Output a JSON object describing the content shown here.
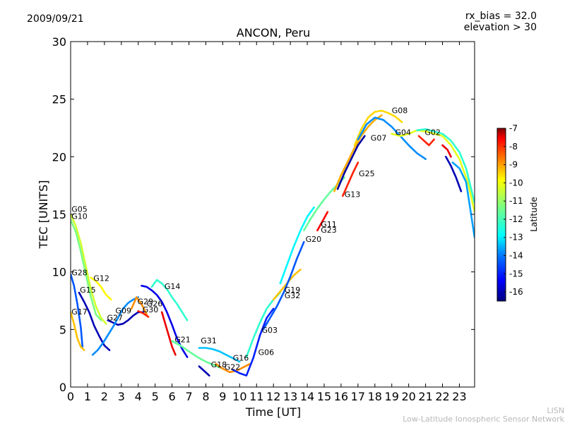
{
  "header": {
    "date": "2009/09/21",
    "rx_bias_label": "rx_bias = 32.0",
    "elevation_label": "elevation > 30"
  },
  "footer": {
    "credit_line1": "LISN",
    "credit_line2": "Low-Latitude Ionospheric Sensor Network"
  },
  "chart_data": {
    "type": "line",
    "title": "ANCON, Peru",
    "xlabel": "Time [UT]",
    "ylabel": "TEC [UNITS]",
    "xlim": [
      0,
      23.9
    ],
    "ylim": [
      0,
      30
    ],
    "xticks": [
      "0",
      "1",
      "2",
      "3",
      "4",
      "5",
      "6",
      "7",
      "8",
      "9",
      "10",
      "11",
      "12",
      "13",
      "14",
      "15",
      "16",
      "17",
      "18",
      "19",
      "20",
      "21",
      "22",
      "23"
    ],
    "yticks": [
      "0",
      "5",
      "10",
      "15",
      "20",
      "25",
      "30"
    ],
    "colorbar": {
      "label": "Latitude",
      "range": [
        -16.5,
        -7
      ],
      "ticks": [
        "-7",
        "-8",
        "-9",
        "-10",
        "-11",
        "-12",
        "-13",
        "-14",
        "-15",
        "-16"
      ],
      "colors": [
        "#00007f",
        "#0000ff",
        "#007fff",
        "#00ffff",
        "#7fff7f",
        "#ffff00",
        "#ff7f00",
        "#ff0000",
        "#7f0000"
      ]
    },
    "series": [
      {
        "name": "G05",
        "label_at": [
          0.05,
          15.2
        ],
        "lat": -11,
        "x": [
          0,
          0.3,
          0.6,
          0.9,
          1.2,
          1.5,
          1.8,
          2.1
        ],
        "y": [
          15.0,
          14.0,
          12.5,
          10.5,
          8.5,
          7.0,
          6.0,
          5.5
        ]
      },
      {
        "name": "G10",
        "label_at": [
          0.05,
          14.6
        ],
        "lat": -11.8,
        "x": [
          0,
          0.3,
          0.6,
          0.9,
          1.2,
          1.5,
          1.8
        ],
        "y": [
          14.5,
          13.5,
          11.8,
          9.8,
          7.8,
          6.3,
          5.8
        ]
      },
      {
        "name": "G28",
        "label_at": [
          0.05,
          9.7
        ],
        "lat": -14.5,
        "x": [
          0,
          0.2,
          0.4,
          0.6,
          0.7
        ],
        "y": [
          9.8,
          8.8,
          7.2,
          5.2,
          3.5
        ]
      },
      {
        "name": "G17",
        "label_at": [
          0.05,
          6.3
        ],
        "lat": -10,
        "x": [
          0,
          0.2,
          0.4,
          0.6,
          0.8
        ],
        "y": [
          6.5,
          5.5,
          4.2,
          3.5,
          3.2
        ]
      },
      {
        "name": "G15",
        "label_at": [
          0.55,
          8.2
        ],
        "lat": -16,
        "x": [
          0.5,
          0.8,
          1.1,
          1.4,
          1.7,
          2.0,
          2.3
        ],
        "y": [
          8.2,
          7.4,
          6.5,
          5.3,
          4.4,
          3.6,
          3.2
        ]
      },
      {
        "name": "G12",
        "label_at": [
          1.35,
          9.2
        ],
        "lat": -10.5,
        "x": [
          1.2,
          1.5,
          1.8,
          2.1,
          2.4
        ],
        "y": [
          9.5,
          9.2,
          8.7,
          8.0,
          7.6
        ]
      },
      {
        "name": "G09",
        "label_at": [
          2.65,
          6.4
        ],
        "lat": -16,
        "x": [
          2.2,
          2.5,
          2.8,
          3.1,
          3.4,
          3.7,
          4.0,
          4.3
        ],
        "y": [
          5.8,
          5.6,
          5.4,
          5.5,
          5.8,
          6.2,
          6.5,
          6.5
        ]
      },
      {
        "name": "G27",
        "label_at": [
          2.15,
          5.8
        ],
        "lat": -14,
        "x": [
          1.3,
          1.6,
          1.9,
          2.2,
          2.5,
          2.8,
          3.1,
          3.4,
          3.7,
          4.0
        ],
        "y": [
          2.8,
          3.2,
          3.8,
          4.5,
          5.2,
          6.0,
          6.8,
          7.3,
          7.6,
          7.8
        ]
      },
      {
        "name": "G29",
        "label_at": [
          3.95,
          7.2
        ],
        "lat": -9.5,
        "x": [
          3.6,
          3.9,
          4.2,
          4.5
        ],
        "y": [
          6.8,
          7.8,
          7.2,
          6.3
        ]
      },
      {
        "name": "G30",
        "label_at": [
          4.25,
          6.5
        ],
        "lat": -8.5,
        "x": [
          4.0,
          4.3,
          4.6
        ],
        "y": [
          6.6,
          6.4,
          6.1
        ]
      },
      {
        "name": "G26",
        "label_at": [
          4.5,
          7.0
        ],
        "lat": -15.5,
        "x": [
          4.2,
          4.5,
          4.8,
          5.1,
          5.4,
          5.7,
          6.0,
          6.3,
          6.6,
          6.9
        ],
        "y": [
          8.8,
          8.7,
          8.4,
          8.0,
          7.4,
          6.5,
          5.4,
          4.2,
          3.3,
          2.6
        ]
      },
      {
        "name": "G14",
        "label_at": [
          5.55,
          8.5
        ],
        "lat": -12.5,
        "x": [
          4.8,
          5.1,
          5.4,
          5.7,
          6.0,
          6.3,
          6.6,
          6.9
        ],
        "y": [
          8.7,
          9.3,
          9.0,
          8.5,
          7.8,
          7.2,
          6.5,
          5.8
        ]
      },
      {
        "name": "G21",
        "label_at": [
          6.15,
          3.9
        ],
        "lat": -8,
        "x": [
          5.4,
          5.6,
          5.8,
          6.0,
          6.2
        ],
        "y": [
          6.5,
          5.5,
          4.5,
          3.5,
          2.8
        ]
      },
      {
        "name": "G31",
        "label_at": [
          7.7,
          3.8
        ],
        "lat": -13.5,
        "x": [
          7.6,
          8.0,
          8.4,
          8.8,
          9.2,
          9.6,
          10.0
        ],
        "y": [
          3.4,
          3.4,
          3.3,
          3.1,
          2.8,
          2.5,
          2.2
        ]
      },
      {
        "name": "G18",
        "label_at": [
          8.3,
          1.7
        ],
        "lat": -12,
        "x": [
          6.0,
          6.5,
          7.0,
          7.5,
          8.0,
          8.5,
          9.0
        ],
        "y": [
          4.0,
          3.6,
          3.1,
          2.6,
          2.2,
          1.9,
          1.6
        ]
      },
      {
        "name": "G22",
        "label_at": [
          9.1,
          1.5
        ],
        "lat": -16,
        "x": [
          7.6,
          7.9,
          8.2
        ],
        "y": [
          1.8,
          1.4,
          1.0
        ]
      },
      {
        "name": "G16",
        "label_at": [
          9.6,
          2.3
        ],
        "lat": -9.5,
        "x": [
          8.6,
          9.0,
          9.4,
          9.8,
          10.2,
          10.6
        ],
        "y": [
          2.0,
          1.6,
          1.3,
          1.4,
          1.7,
          2.0
        ]
      },
      {
        "name": "G06",
        "label_at": [
          11.1,
          2.8
        ],
        "lat": -15,
        "x": [
          9.6,
          10.0,
          10.4,
          10.8,
          11.2,
          11.6,
          12.0
        ],
        "y": [
          1.5,
          1.2,
          1.0,
          2.5,
          4.5,
          6.0,
          6.8
        ]
      },
      {
        "name": "G03",
        "label_at": [
          11.3,
          4.7
        ],
        "lat": -12.5,
        "x": [
          10.4,
          10.8,
          11.2,
          11.6,
          12.0,
          12.4
        ],
        "y": [
          2.6,
          4.2,
          5.6,
          6.8,
          7.6,
          8.2
        ]
      },
      {
        "name": "G19",
        "label_at": [
          12.65,
          8.2
        ],
        "lat": -10,
        "x": [
          12.0,
          12.4,
          12.8,
          13.2,
          13.6
        ],
        "y": [
          7.6,
          8.3,
          9.0,
          9.7,
          10.2
        ]
      },
      {
        "name": "G32",
        "label_at": [
          12.65,
          7.7
        ],
        "lat": -14.5,
        "x": [
          11.4,
          11.8,
          12.2,
          12.6,
          13.0,
          13.4,
          13.8
        ],
        "y": [
          5.0,
          6.0,
          7.0,
          8.2,
          9.6,
          11.2,
          12.6
        ]
      },
      {
        "name": "G20",
        "label_at": [
          13.9,
          12.6
        ],
        "lat": -13,
        "x": [
          12.4,
          12.8,
          13.2,
          13.6,
          14.0,
          14.4
        ],
        "y": [
          9.0,
          10.6,
          12.2,
          13.6,
          14.8,
          15.6
        ]
      },
      {
        "name": "G11",
        "label_at": [
          14.8,
          13.9
        ],
        "lat": -12,
        "x": [
          13.8,
          14.2,
          14.6,
          15.0,
          15.4,
          15.8,
          16.2
        ],
        "y": [
          13.6,
          14.6,
          15.5,
          16.3,
          17.0,
          17.6,
          18.2
        ]
      },
      {
        "name": "G23",
        "label_at": [
          14.8,
          13.4
        ],
        "lat": -8.2,
        "x": [
          14.6,
          14.9,
          15.2
        ],
        "y": [
          13.6,
          14.4,
          15.2
        ]
      },
      {
        "name": "G13",
        "label_at": [
          16.2,
          16.5
        ],
        "lat": -8.5,
        "x": [
          16.1,
          16.4,
          16.7,
          17.0
        ],
        "y": [
          16.6,
          17.6,
          18.6,
          19.5
        ]
      },
      {
        "name": "G25",
        "label_at": [
          17.05,
          18.3
        ],
        "lat": -9.8,
        "x": [
          15.6,
          16.0,
          16.4,
          16.8,
          17.2,
          17.6,
          18.0,
          18.4
        ],
        "y": [
          17.0,
          18.4,
          19.6,
          20.8,
          21.8,
          22.6,
          23.2,
          23.6
        ]
      },
      {
        "name": "G07",
        "label_at": [
          17.75,
          21.4
        ],
        "lat": -16.2,
        "x": [
          15.8,
          16.2,
          16.6,
          17.0,
          17.4
        ],
        "y": [
          17.2,
          18.6,
          19.8,
          21.0,
          21.8
        ]
      },
      {
        "name": "G08",
        "label_at": [
          19.0,
          23.8
        ],
        "lat": -10.2,
        "x": [
          16.8,
          17.2,
          17.6,
          18.0,
          18.4,
          18.8,
          19.2,
          19.6
        ],
        "y": [
          21.0,
          22.4,
          23.4,
          23.9,
          24.0,
          23.8,
          23.5,
          23.0
        ]
      },
      {
        "name": "G04",
        "label_at": [
          19.2,
          21.9
        ],
        "lat": -14,
        "x": [
          17.0,
          17.5,
          18.0,
          18.5,
          19.0,
          19.5,
          20.0,
          20.5,
          21.0
        ],
        "y": [
          21.5,
          22.8,
          23.4,
          23.2,
          22.6,
          21.8,
          21.0,
          20.3,
          19.8
        ]
      },
      {
        "name": "G02",
        "label_at": [
          20.95,
          21.9
        ],
        "lat": -10.8,
        "x": [
          19.0,
          19.5,
          20.0,
          20.5,
          21.0,
          21.5,
          22.0,
          22.5,
          23.0,
          23.5,
          23.9
        ],
        "y": [
          22.0,
          21.8,
          22.0,
          22.3,
          22.2,
          22.0,
          21.8,
          21.0,
          19.8,
          17.8,
          15.2
        ]
      },
      {
        "name": "",
        "label_at": null,
        "lat": -8.5,
        "x": [
          20.6,
          20.9,
          21.2,
          21.5
        ],
        "y": [
          21.8,
          21.4,
          21.0,
          21.5
        ]
      },
      {
        "name": "",
        "label_at": null,
        "lat": -12.5,
        "x": [
          20.5,
          21.0,
          21.5,
          22.0,
          22.5,
          23.0,
          23.4,
          23.9
        ],
        "y": [
          22.3,
          22.4,
          22.2,
          22.0,
          21.4,
          20.4,
          19.0,
          16.0
        ]
      },
      {
        "name": "",
        "label_at": null,
        "lat": -13.8,
        "x": [
          22.6,
          23.0,
          23.4,
          23.9
        ],
        "y": [
          19.5,
          19.0,
          17.8,
          13.0
        ]
      },
      {
        "name": "",
        "label_at": null,
        "lat": -16,
        "x": [
          22.2,
          22.5,
          22.8,
          23.1
        ],
        "y": [
          20.0,
          19.2,
          18.2,
          17.0
        ]
      },
      {
        "name": "",
        "label_at": null,
        "lat": -8,
        "x": [
          22.0,
          22.3,
          22.5
        ],
        "y": [
          21.0,
          20.6,
          20.0
        ]
      }
    ]
  }
}
